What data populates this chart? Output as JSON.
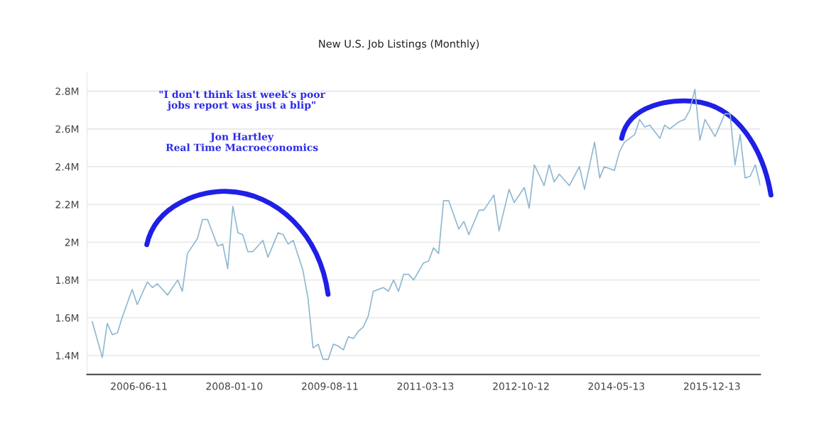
{
  "chart_data": {
    "type": "line",
    "title": "New U.S. Job Listings (Monthly)",
    "annotations": [
      "\"I don't think last week's poor\njobs report was just a blip\"",
      "Jon Hartley\nReal Time Macroeconomics"
    ],
    "x": [
      "2005-09",
      "2005-11",
      "2005-12",
      "2006-01",
      "2006-02",
      "2006-03",
      "2006-05",
      "2006-06",
      "2006-08",
      "2006-09",
      "2006-10",
      "2006-12",
      "2007-02",
      "2007-03",
      "2007-04",
      "2007-06",
      "2007-07",
      "2007-08",
      "2007-10",
      "2007-11",
      "2007-12",
      "2008-01",
      "2008-02",
      "2008-03",
      "2008-04",
      "2008-05",
      "2008-07",
      "2008-08",
      "2008-10",
      "2008-11",
      "2008-12",
      "2009-01",
      "2009-03",
      "2009-04",
      "2009-05",
      "2009-06",
      "2009-07",
      "2009-08",
      "2009-09",
      "2009-10",
      "2009-11",
      "2009-12",
      "2010-01",
      "2010-02",
      "2010-03",
      "2010-04",
      "2010-05",
      "2010-07",
      "2010-08",
      "2010-09",
      "2010-10",
      "2010-11",
      "2010-12",
      "2011-01",
      "2011-03",
      "2011-04",
      "2011-05",
      "2011-06",
      "2011-07",
      "2011-08",
      "2011-10",
      "2011-11",
      "2011-12",
      "2012-02",
      "2012-03",
      "2012-05",
      "2012-06",
      "2012-08",
      "2012-09",
      "2012-11",
      "2012-12",
      "2013-01",
      "2013-03",
      "2013-04",
      "2013-05",
      "2013-06",
      "2013-08",
      "2013-10",
      "2013-11",
      "2014-01",
      "2014-02",
      "2014-03",
      "2014-05",
      "2014-06",
      "2014-07",
      "2014-09",
      "2014-10",
      "2014-11",
      "2014-12",
      "2015-02",
      "2015-03",
      "2015-04",
      "2015-06",
      "2015-07",
      "2015-08",
      "2015-09",
      "2015-10",
      "2015-11",
      "2016-01",
      "2016-03",
      "2016-04",
      "2016-05",
      "2016-06",
      "2016-07",
      "2016-08",
      "2016-09",
      "2016-10"
    ],
    "series": [
      {
        "color": "#8fb8d0",
        "values": [
          1.58,
          1.39,
          1.57,
          1.51,
          1.52,
          1.6,
          1.75,
          1.67,
          1.79,
          1.76,
          1.78,
          1.72,
          1.8,
          1.74,
          1.94,
          2.02,
          2.12,
          2.12,
          1.98,
          1.99,
          1.86,
          2.19,
          2.05,
          2.04,
          1.95,
          1.95,
          2.01,
          1.92,
          2.05,
          2.04,
          1.99,
          2.01,
          1.85,
          1.7,
          1.44,
          1.46,
          1.38,
          1.38,
          1.46,
          1.45,
          1.43,
          1.5,
          1.49,
          1.53,
          1.55,
          1.61,
          1.74,
          1.76,
          1.74,
          1.8,
          1.74,
          1.83,
          1.83,
          1.8,
          1.89,
          1.9,
          1.97,
          1.94,
          2.22,
          2.22,
          2.07,
          2.11,
          2.04,
          2.17,
          2.17,
          2.25,
          2.06,
          2.28,
          2.21,
          2.29,
          2.18,
          2.41,
          2.3,
          2.41,
          2.32,
          2.36,
          2.3,
          2.4,
          2.28,
          2.53,
          2.34,
          2.4,
          2.38,
          2.48,
          2.53,
          2.57,
          2.65,
          2.61,
          2.62,
          2.55,
          2.62,
          2.6,
          2.64,
          2.65,
          2.7,
          2.81,
          2.54,
          2.65,
          2.56,
          2.68,
          2.68,
          2.41,
          2.57,
          2.34,
          2.35,
          2.41,
          2.3
        ]
      }
    ],
    "xlim": [
      "2005-08",
      "2016-10"
    ],
    "xticks": [
      "2006-06-11",
      "2008-01-10",
      "2009-08-11",
      "2011-03-13",
      "2012-10-12",
      "2014-05-13",
      "2015-12-13"
    ],
    "ylim": [
      1.3,
      2.9
    ],
    "yticks": [
      {
        "value": 1.4,
        "label": "1.4M"
      },
      {
        "value": 1.6,
        "label": "1.6M"
      },
      {
        "value": 1.8,
        "label": "1.8M"
      },
      {
        "value": 2.0,
        "label": "2M"
      },
      {
        "value": 2.2,
        "label": "2.2M"
      },
      {
        "value": 2.4,
        "label": "2.4M"
      },
      {
        "value": 2.6,
        "label": "2.6M"
      },
      {
        "value": 2.8,
        "label": "2.8M"
      }
    ],
    "grid": "y",
    "legend": false
  }
}
